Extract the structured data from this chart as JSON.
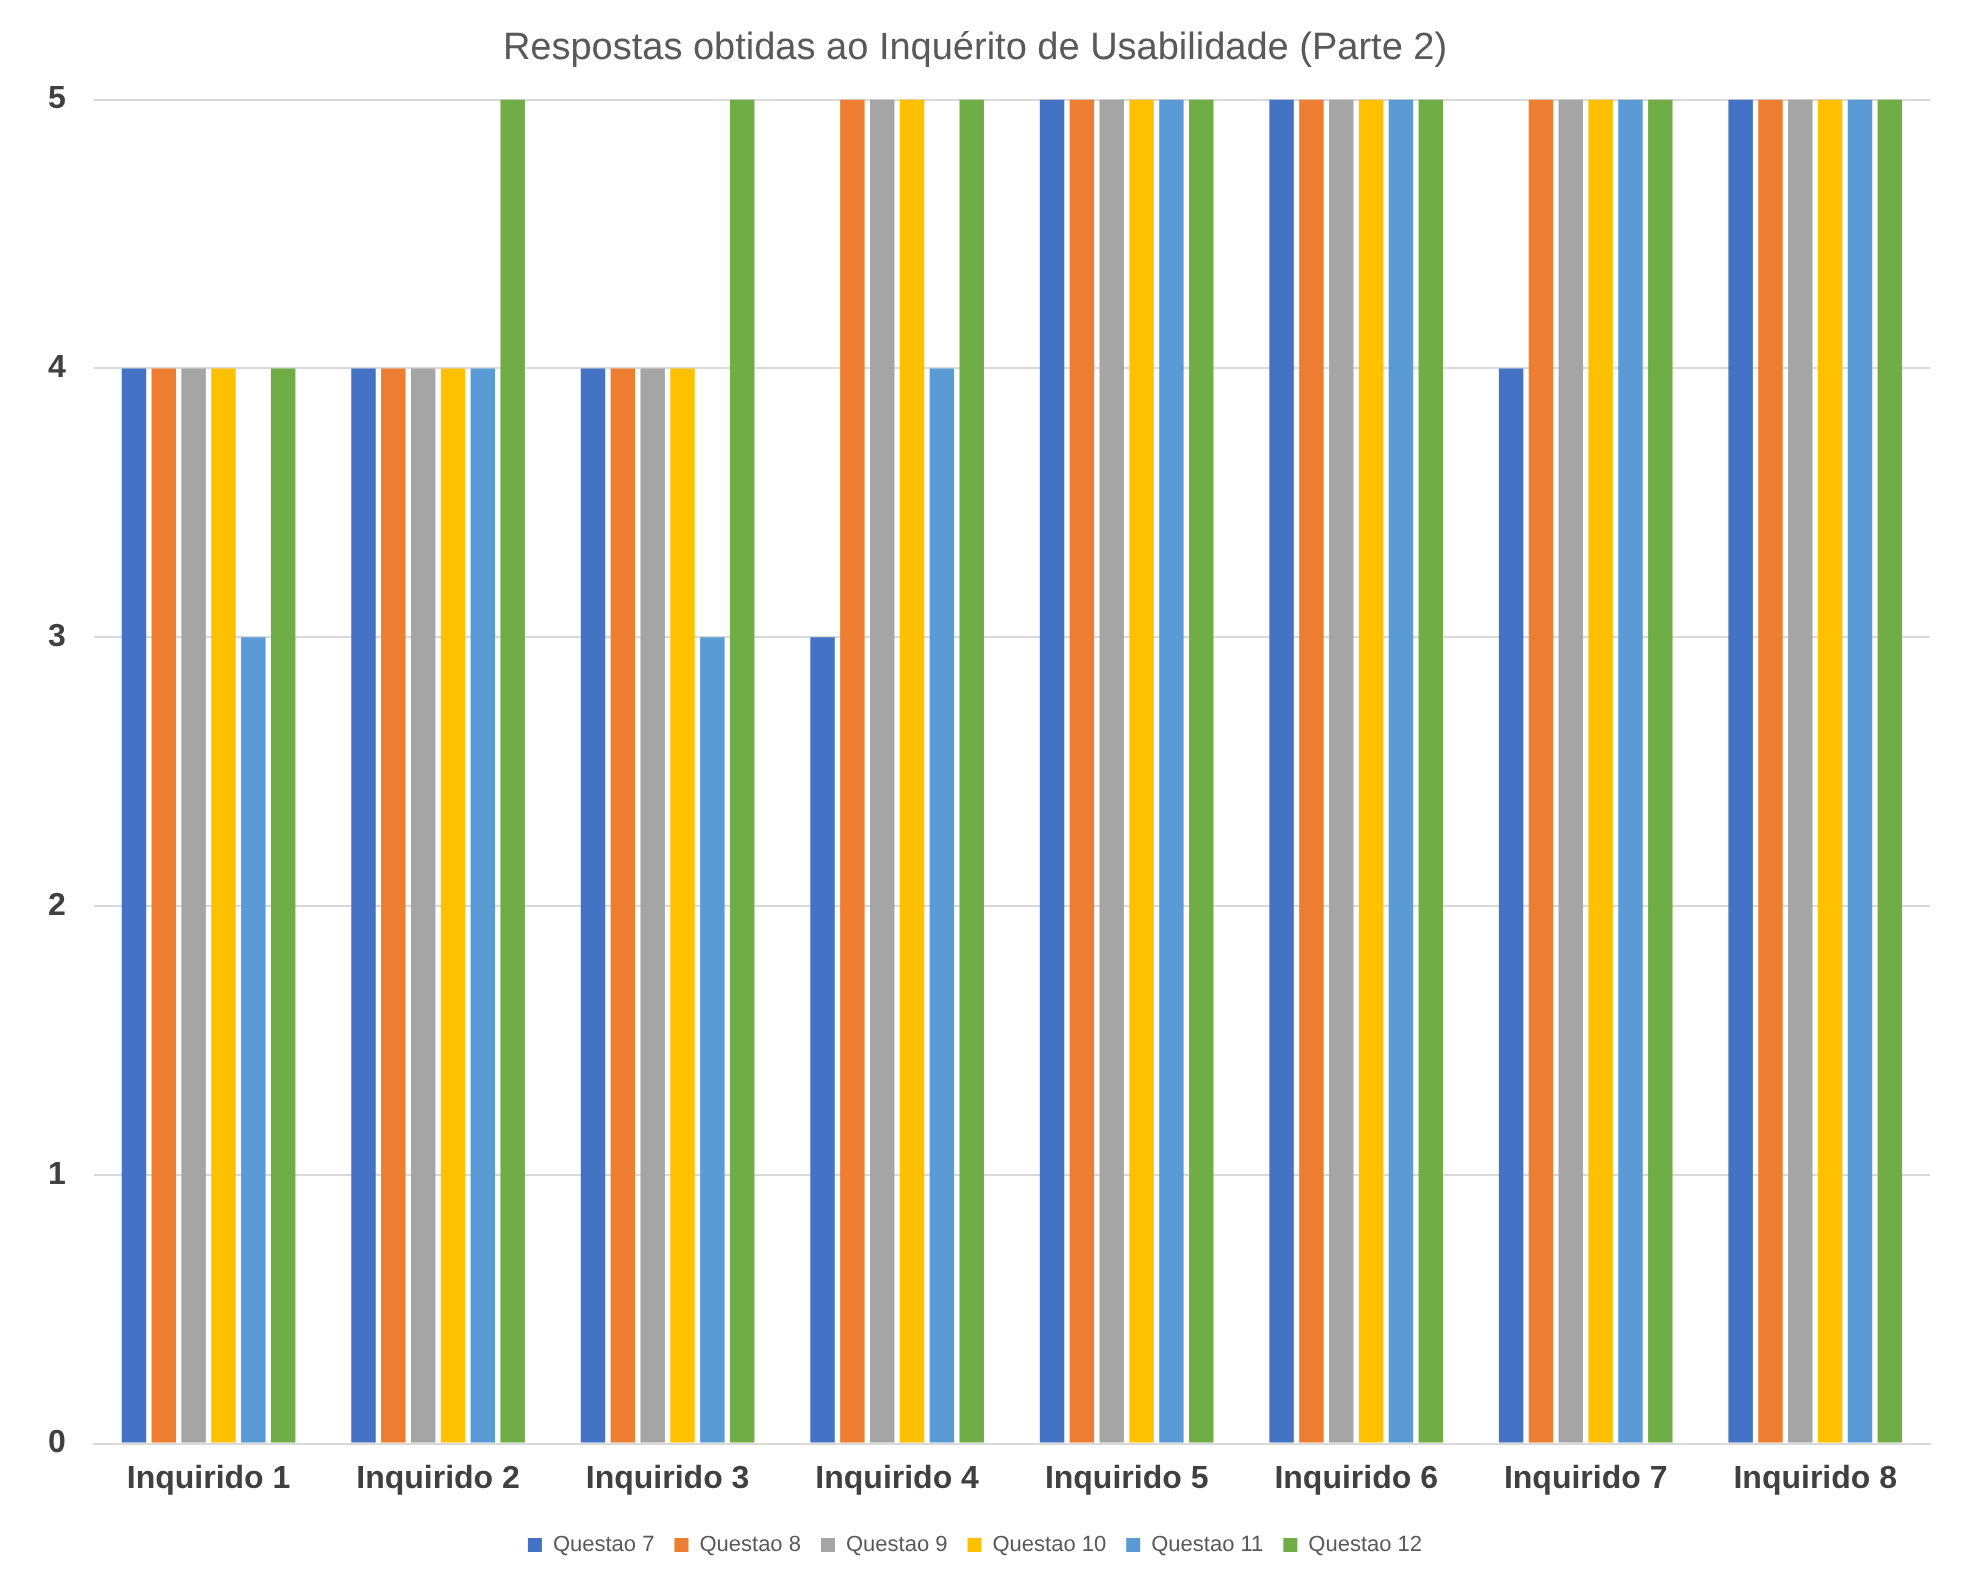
{
  "chart_data": {
    "type": "bar",
    "title": "Respostas obtidas ao Inquérito de Usabilidade (Parte 2)",
    "categories": [
      "Inquirido 1",
      "Inquirido 2",
      "Inquirido 3",
      "Inquirido 4",
      "Inquirido 5",
      "Inquirido 6",
      "Inquirido 7",
      "Inquirido 8"
    ],
    "series": [
      {
        "name": "Questao 7",
        "color": "#4472c4",
        "values": [
          4,
          4,
          4,
          3,
          5,
          5,
          4,
          5
        ]
      },
      {
        "name": "Questao 8",
        "color": "#ed7d31",
        "values": [
          4,
          4,
          4,
          5,
          5,
          5,
          5,
          5
        ]
      },
      {
        "name": "Questao 9",
        "color": "#a5a5a5",
        "values": [
          4,
          4,
          4,
          5,
          5,
          5,
          5,
          5
        ]
      },
      {
        "name": "Questao 10",
        "color": "#ffc000",
        "values": [
          4,
          4,
          4,
          5,
          5,
          5,
          5,
          5
        ]
      },
      {
        "name": "Questao 11",
        "color": "#5b9bd5",
        "values": [
          3,
          4,
          3,
          4,
          5,
          5,
          5,
          5
        ]
      },
      {
        "name": "Questao 12",
        "color": "#70ad47",
        "values": [
          4,
          5,
          5,
          5,
          5,
          5,
          5,
          5
        ]
      }
    ],
    "ylim": [
      0,
      5
    ],
    "yticks": [
      0,
      1,
      2,
      3,
      4,
      5
    ],
    "grid": "y",
    "legend": "bottom"
  }
}
